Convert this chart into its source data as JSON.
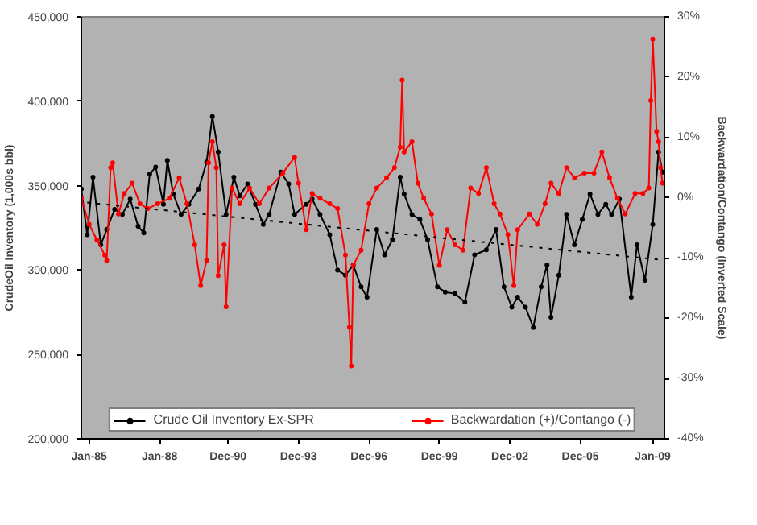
{
  "chart_data": {
    "type": "line",
    "ylabel": "CrudeOil Inventory (1,000s bbl)",
    "y2label": "Backwardation/Contango (Inverted Scale)",
    "xlim": [
      "1984-09",
      "2009-07"
    ],
    "xticks": [
      {
        "value": "1985-01",
        "label": "Jan-85"
      },
      {
        "value": "1988-01",
        "label": "Jan-88"
      },
      {
        "value": "1990-12",
        "label": "Dec-90"
      },
      {
        "value": "1993-12",
        "label": "Dec-93"
      },
      {
        "value": "1996-12",
        "label": "Dec-96"
      },
      {
        "value": "1999-12",
        "label": "Dec-99"
      },
      {
        "value": "2002-12",
        "label": "Dec-02"
      },
      {
        "value": "2005-12",
        "label": "Dec-05"
      },
      {
        "value": "2009-01",
        "label": "Jan-09"
      }
    ],
    "ylim": [
      200000,
      450000
    ],
    "yticks": [
      {
        "value": 200000,
        "label": "200,000"
      },
      {
        "value": 250000,
        "label": "250,000"
      },
      {
        "value": 300000,
        "label": "300,000"
      },
      {
        "value": 350000,
        "label": "350,000"
      },
      {
        "value": 400000,
        "label": "400,000"
      },
      {
        "value": 450000,
        "label": "450,000"
      }
    ],
    "y2lim": [
      -40,
      30
    ],
    "y2ticks": [
      {
        "value": -40,
        "label": "-40%"
      },
      {
        "value": -30,
        "label": "-30%"
      },
      {
        "value": -20,
        "label": "-20%"
      },
      {
        "value": -10,
        "label": "-10%"
      },
      {
        "value": 0,
        "label": "0%"
      },
      {
        "value": 10,
        "label": "10%"
      },
      {
        "value": 20,
        "label": "20%"
      },
      {
        "value": 30,
        "label": "30%"
      }
    ],
    "grid": false,
    "legend": "bottom",
    "marker": "circle",
    "line_style": "solid",
    "series": [
      {
        "name": "Crude Oil Inventory Ex-SPR",
        "color": "#000000",
        "x": [
          "1984-09",
          "1984-12",
          "1985-03",
          "1985-07",
          "1985-10",
          "1986-02",
          "1986-06",
          "1986-10",
          "1987-02",
          "1987-05",
          "1987-08",
          "1987-11",
          "1988-03",
          "1988-05",
          "1988-08",
          "1988-12",
          "1989-04",
          "1989-09",
          "1990-01",
          "1990-04",
          "1990-07",
          "1990-11",
          "1991-03",
          "1991-06",
          "1991-10",
          "1992-02",
          "1992-06",
          "1992-09",
          "1993-03",
          "1993-07",
          "1993-10",
          "1994-04",
          "1994-07",
          "1994-11",
          "1995-04",
          "1995-08",
          "1995-12",
          "1996-04",
          "1996-08",
          "1996-11",
          "1997-04",
          "1997-08",
          "1997-12",
          "1998-04",
          "1998-06",
          "1998-10",
          "1999-02",
          "1999-06",
          "1999-11",
          "2000-03",
          "2000-08",
          "2001-01",
          "2001-06",
          "2001-12",
          "2002-05",
          "2002-09",
          "2003-01",
          "2003-04",
          "2003-08",
          "2003-12",
          "2004-04",
          "2004-07",
          "2004-09",
          "2005-01",
          "2005-05",
          "2005-09",
          "2006-01",
          "2006-05",
          "2006-09",
          "2007-01",
          "2007-04",
          "2007-08",
          "2008-02",
          "2008-05",
          "2008-09",
          "2009-01",
          "2009-04",
          "2009-06"
        ],
        "values": [
          348000,
          321000,
          355000,
          315000,
          324000,
          336000,
          333000,
          342000,
          326000,
          322000,
          357000,
          361000,
          339000,
          365000,
          345000,
          333000,
          339000,
          348000,
          364000,
          391000,
          370000,
          333000,
          355000,
          344000,
          351000,
          339000,
          327000,
          333000,
          358000,
          351000,
          333000,
          339000,
          342000,
          333000,
          321000,
          300000,
          297000,
          303000,
          290000,
          284000,
          324000,
          309000,
          318000,
          355000,
          345000,
          333000,
          330000,
          318000,
          290000,
          287000,
          286000,
          281000,
          309000,
          312000,
          324000,
          290000,
          278000,
          284000,
          278000,
          266000,
          290000,
          303000,
          272000,
          297000,
          333000,
          315000,
          330000,
          345000,
          333000,
          339000,
          333000,
          342000,
          284000,
          315000,
          294000,
          327000,
          370000,
          358000
        ]
      },
      {
        "name": "Backwardation (+)/Contango (-)",
        "color": "#ff0000",
        "axis": "y2",
        "x": [
          "1984-09",
          "1985-01",
          "1985-05",
          "1985-09",
          "1985-10",
          "1985-12",
          "1986-01",
          "1986-04",
          "1986-07",
          "1986-11",
          "1987-03",
          "1987-07",
          "1987-12",
          "1988-06",
          "1988-11",
          "1989-03",
          "1989-07",
          "1989-10",
          "1990-01",
          "1990-02",
          "1990-04",
          "1990-06",
          "1990-07",
          "1990-10",
          "1990-11",
          "1991-02",
          "1991-06",
          "1991-11",
          "1992-04",
          "1992-09",
          "1993-04",
          "1993-10",
          "1993-12",
          "1994-04",
          "1994-07",
          "1994-11",
          "1995-04",
          "1995-08",
          "1995-12",
          "1996-02",
          "1996-03",
          "1996-04",
          "1996-08",
          "1996-12",
          "1997-04",
          "1997-09",
          "1998-01",
          "1998-04",
          "1998-05",
          "1998-06",
          "1998-10",
          "1999-01",
          "1999-04",
          "1999-08",
          "1999-12",
          "2000-04",
          "2000-08",
          "2000-12",
          "2001-04",
          "2001-08",
          "2001-12",
          "2002-04",
          "2002-07",
          "2002-11",
          "2003-02",
          "2003-04",
          "2003-10",
          "2004-02",
          "2004-06",
          "2004-09",
          "2005-01",
          "2005-05",
          "2005-09",
          "2006-02",
          "2006-07",
          "2006-11",
          "2007-03",
          "2007-07",
          "2007-11",
          "2008-04",
          "2008-08",
          "2008-11",
          "2008-12",
          "2009-01",
          "2009-03",
          "2009-04",
          "2009-05",
          "2009-06"
        ],
        "values": [
          -0.1,
          -4.4,
          -7.0,
          -9.5,
          -10.4,
          5.0,
          5.8,
          -2.7,
          0.7,
          2.4,
          -1.0,
          -1.8,
          -1.0,
          -0.1,
          3.3,
          -1.0,
          -7.8,
          -14.6,
          -10.4,
          5.8,
          9.3,
          5.0,
          -12.9,
          -7.8,
          -18.1,
          1.6,
          -1.0,
          1.6,
          -1.0,
          1.6,
          4.1,
          6.7,
          2.4,
          -5.3,
          0.7,
          -0.1,
          -1.0,
          -1.8,
          -9.5,
          -21.5,
          -27.9,
          -11.2,
          -8.7,
          -1.0,
          1.6,
          3.3,
          5.0,
          8.4,
          19.5,
          7.6,
          9.3,
          2.4,
          -0.1,
          -2.7,
          -11.2,
          -5.3,
          -7.8,
          -8.7,
          1.6,
          0.7,
          5.0,
          -1.0,
          -2.7,
          -6.1,
          -14.6,
          -5.3,
          -2.7,
          -4.4,
          -1.0,
          2.4,
          0.7,
          5.0,
          3.3,
          4.1,
          4.1,
          7.6,
          3.3,
          -0.1,
          -2.7,
          0.7,
          0.7,
          1.6,
          16.1,
          26.3,
          11.0,
          9.3,
          5.0,
          2.4
        ]
      },
      {
        "color": "#000000",
        "x": [
          "1984-12",
          "2009-06"
        ],
        "values": [
          340000,
          306000
        ],
        "marker": "none",
        "line_style": "dotted"
      }
    ]
  }
}
